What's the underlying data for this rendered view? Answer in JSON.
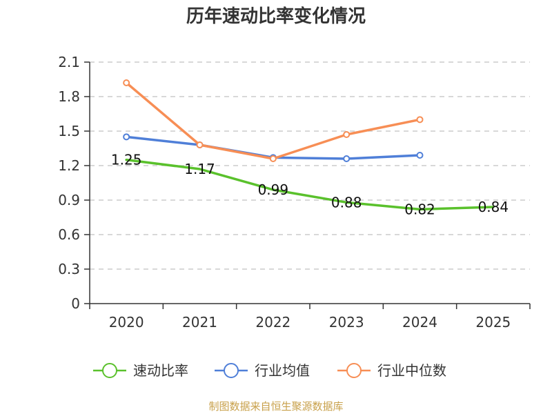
{
  "title": "历年速动比率变化情况",
  "source": "制图数据来自恒生聚源数据库",
  "chart_data": {
    "type": "line",
    "categories": [
      "2020",
      "2021",
      "2022",
      "2023",
      "2024",
      "2025"
    ],
    "ylim": [
      0,
      2.1
    ],
    "yticks": [
      "0",
      "0.3",
      "0.6",
      "0.9",
      "1.2",
      "1.5",
      "1.8",
      "2.1"
    ],
    "grid": true,
    "legend_position": "bottom",
    "series": [
      {
        "name": "速动比率",
        "color": "#5ac12c",
        "values": [
          1.25,
          1.17,
          0.99,
          0.88,
          0.82,
          0.84
        ],
        "labels": [
          "1.25",
          "1.17",
          "0.99",
          "0.88",
          "0.82",
          "0.84"
        ],
        "markers": false
      },
      {
        "name": "行业均值",
        "color": "#4f7fd8",
        "values": [
          1.45,
          1.38,
          1.27,
          1.26,
          1.29,
          null
        ],
        "markers": true
      },
      {
        "name": "行业中位数",
        "color": "#f78e55",
        "values": [
          1.92,
          1.38,
          1.26,
          1.47,
          1.6,
          null
        ],
        "markers": true
      }
    ]
  }
}
